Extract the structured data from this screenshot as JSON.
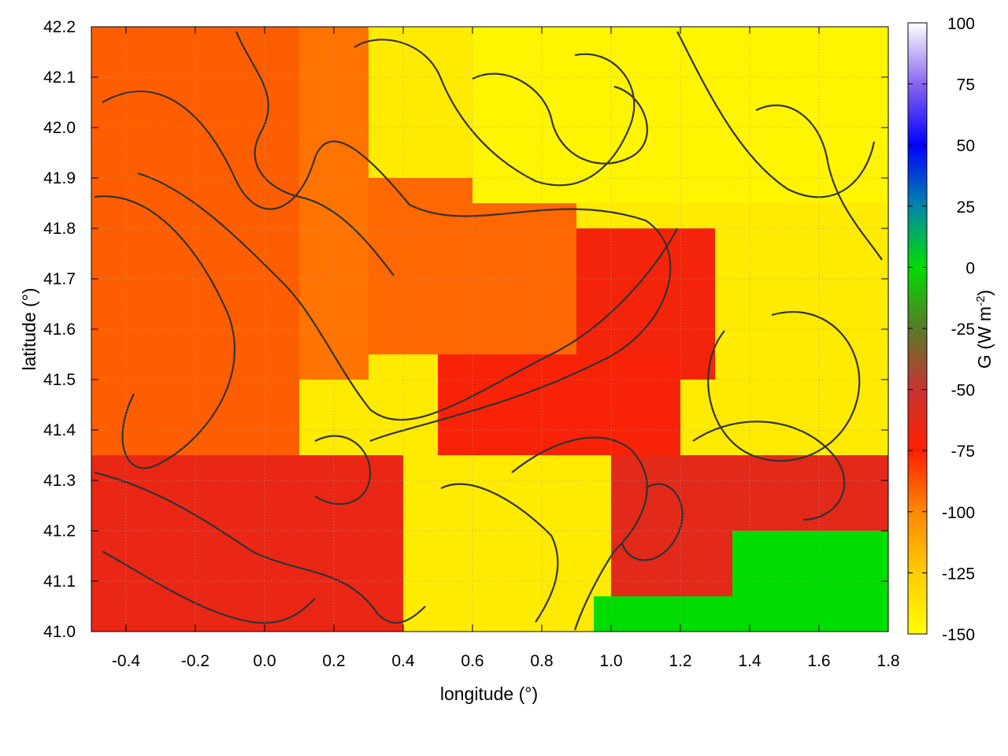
{
  "chart_data": {
    "type": "heatmap",
    "title": "",
    "xlabel": "longitude (°)",
    "ylabel": "latitude (°)",
    "colorbar_label": "G (W m-2)",
    "colorbar_label_parts": {
      "base": "G (W m",
      "sup": "-2",
      "close": ")"
    },
    "xlim": [
      -0.5,
      1.8
    ],
    "ylim": [
      41.0,
      42.2
    ],
    "x_ticks": [
      -0.4,
      -0.2,
      0.0,
      0.2,
      0.4,
      0.6,
      0.8,
      1.0,
      1.2,
      1.4,
      1.6,
      1.8
    ],
    "x_tick_labels": [
      "-0.4",
      "-0.2",
      "0.0",
      "0.2",
      "0.4",
      "0.6",
      "0.8",
      "1.0",
      "1.2",
      "1.4",
      "1.6",
      "1.8"
    ],
    "y_ticks": [
      41.0,
      41.1,
      41.2,
      41.3,
      41.4,
      41.5,
      41.6,
      41.7,
      41.8,
      41.9,
      42.0,
      42.1,
      42.2
    ],
    "y_tick_labels": [
      "41.0",
      "41.1",
      "41.2",
      "41.3",
      "41.4",
      "41.5",
      "41.6",
      "41.7",
      "41.8",
      "41.9",
      "42.0",
      "42.1",
      "42.2"
    ],
    "color_range": [
      -150,
      100
    ],
    "colorbar_ticks": [
      100,
      75,
      50,
      25,
      0,
      -25,
      -50,
      -75,
      -100,
      -125,
      -150
    ],
    "colorbar_tick_labels": [
      "100",
      "75",
      "50",
      "25",
      "0",
      "-25",
      "-50",
      "-75",
      "-100",
      "-125",
      "-150"
    ],
    "colormap": [
      {
        "value": -150,
        "color": "#ffff00"
      },
      {
        "value": -125,
        "color": "#ffcc00"
      },
      {
        "value": -100,
        "color": "#ff8800"
      },
      {
        "value": -75,
        "color": "#ff2000"
      },
      {
        "value": -50,
        "color": "#c83232"
      },
      {
        "value": -25,
        "color": "#5a7a28"
      },
      {
        "value": 0,
        "color": "#00dd00"
      },
      {
        "value": 25,
        "color": "#0088aa"
      },
      {
        "value": 50,
        "color": "#0000ff"
      },
      {
        "value": 75,
        "color": "#8866ee"
      },
      {
        "value": 100,
        "color": "#ffffff"
      }
    ],
    "grid": true,
    "contours": true,
    "regions": [
      {
        "x": [
          -0.5,
          0.4
        ],
        "y": [
          41.0,
          41.35
        ],
        "value": -65
      },
      {
        "x": [
          -0.5,
          0.1
        ],
        "y": [
          41.35,
          42.2
        ],
        "value": -90
      },
      {
        "x": [
          0.1,
          0.3
        ],
        "y": [
          41.5,
          42.2
        ],
        "value": -95
      },
      {
        "x": [
          0.3,
          0.9
        ],
        "y": [
          41.55,
          41.9
        ],
        "value": -92
      },
      {
        "x": [
          0.3,
          0.6
        ],
        "y": [
          41.9,
          42.2
        ],
        "value": -140
      },
      {
        "x": [
          0.6,
          1.8
        ],
        "y": [
          41.85,
          42.2
        ],
        "value": -145
      },
      {
        "x": [
          0.9,
          1.3
        ],
        "y": [
          41.5,
          41.8
        ],
        "value": -70
      },
      {
        "x": [
          0.5,
          1.2
        ],
        "y": [
          41.35,
          41.55
        ],
        "value": -72
      },
      {
        "x": [
          1.3,
          1.8
        ],
        "y": [
          41.45,
          41.75
        ],
        "value": -140
      },
      {
        "x": [
          0.4,
          1.0
        ],
        "y": [
          41.1,
          41.35
        ],
        "value": -140
      },
      {
        "x": [
          1.0,
          1.8
        ],
        "y": [
          41.0,
          41.35
        ],
        "value": -62
      },
      {
        "x": [
          1.35,
          1.8
        ],
        "y": [
          41.0,
          41.2
        ],
        "value": 0
      },
      {
        "x": [
          0.95,
          1.35
        ],
        "y": [
          41.0,
          41.07
        ],
        "value": 0
      }
    ]
  }
}
